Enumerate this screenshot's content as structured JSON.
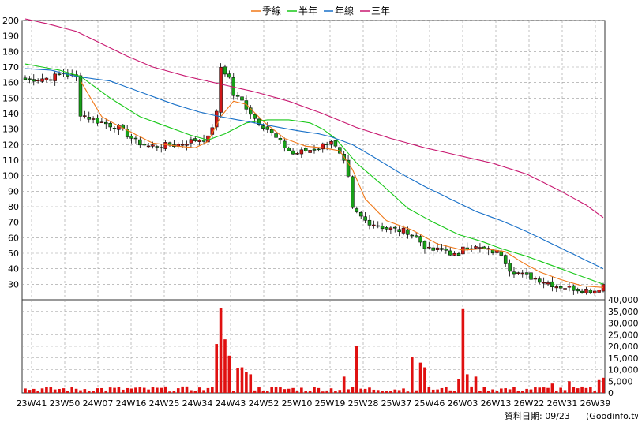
{
  "chart_data": {
    "type": "candlestick",
    "legend": [
      {
        "name": "季線",
        "color": "#f07818"
      },
      {
        "name": "半年",
        "color": "#18c818"
      },
      {
        "name": "年線",
        "color": "#1870c8"
      },
      {
        "name": "三年",
        "color": "#c81870"
      }
    ],
    "legend_position": "top-center",
    "colors": {
      "up": "#d01818",
      "down": "#18a018",
      "grid": "#999999",
      "volume": "#e01010"
    },
    "grid": true,
    "price_axis": {
      "min": 20,
      "max": 200,
      "ticks": [
        30,
        40,
        50,
        60,
        70,
        80,
        90,
        100,
        110,
        120,
        130,
        140,
        150,
        160,
        170,
        180,
        190,
        200
      ]
    },
    "volume_axis": {
      "min": 0,
      "max": 40000,
      "ticks": [
        "0",
        "5,000",
        "10,000",
        "15,000",
        "20,000",
        "25,000",
        "30,000",
        "35,000",
        "40,000"
      ]
    },
    "x_ticks": [
      "23W41",
      "23W50",
      "24W07",
      "24W16",
      "24W25",
      "24W34",
      "24W43",
      "24W52",
      "25W10",
      "25W19",
      "25W28",
      "25W37",
      "25W46",
      "26W03",
      "26W13",
      "26W22",
      "26W31",
      "26W39"
    ],
    "price_keypoints": [
      [
        0,
        162
      ],
      [
        6,
        163
      ],
      [
        9,
        166
      ],
      [
        12,
        163
      ],
      [
        13,
        140
      ],
      [
        16,
        136
      ],
      [
        22,
        131
      ],
      [
        26,
        122
      ],
      [
        29,
        119
      ],
      [
        36,
        120
      ],
      [
        40,
        123
      ],
      [
        43,
        124
      ],
      [
        45,
        140
      ],
      [
        46,
        170
      ],
      [
        48,
        163
      ],
      [
        49,
        152
      ],
      [
        51,
        148
      ],
      [
        54,
        137
      ],
      [
        57,
        130
      ],
      [
        60,
        121
      ],
      [
        63,
        114
      ],
      [
        66,
        116
      ],
      [
        69,
        118
      ],
      [
        72,
        123
      ],
      [
        75,
        108
      ],
      [
        76,
        98
      ],
      [
        77,
        78
      ],
      [
        80,
        71
      ],
      [
        85,
        66
      ],
      [
        90,
        64
      ],
      [
        92,
        60
      ],
      [
        95,
        52
      ],
      [
        99,
        52
      ],
      [
        102,
        47
      ],
      [
        103,
        55
      ],
      [
        107,
        53
      ],
      [
        112,
        50
      ],
      [
        114,
        40
      ],
      [
        117,
        36
      ],
      [
        121,
        33
      ],
      [
        125,
        29
      ],
      [
        130,
        27
      ],
      [
        134,
        26
      ],
      [
        136,
        30
      ]
    ],
    "ma_keypoints": {
      "季線": [
        [
          13,
          161
        ],
        [
          18,
          138
        ],
        [
          22,
          132
        ],
        [
          30,
          121
        ],
        [
          36,
          119
        ],
        [
          40,
          118
        ],
        [
          43,
          122
        ],
        [
          46,
          138
        ],
        [
          49,
          148
        ],
        [
          52,
          146
        ],
        [
          56,
          135
        ],
        [
          61,
          124
        ],
        [
          66,
          119
        ],
        [
          70,
          118
        ],
        [
          74,
          116
        ],
        [
          77,
          104
        ],
        [
          80,
          85
        ],
        [
          85,
          71
        ],
        [
          91,
          65
        ],
        [
          97,
          56
        ],
        [
          103,
          52
        ],
        [
          108,
          53
        ],
        [
          113,
          51
        ],
        [
          117,
          44
        ],
        [
          121,
          38
        ],
        [
          126,
          33
        ],
        [
          131,
          29
        ],
        [
          136,
          28
        ]
      ],
      "半年": [
        [
          0,
          172
        ],
        [
          8,
          168
        ],
        [
          13,
          164
        ],
        [
          20,
          150
        ],
        [
          27,
          138
        ],
        [
          33,
          132
        ],
        [
          39,
          126
        ],
        [
          43,
          123
        ],
        [
          47,
          127
        ],
        [
          52,
          134
        ],
        [
          57,
          136
        ],
        [
          62,
          136
        ],
        [
          67,
          134
        ],
        [
          70,
          130
        ],
        [
          73,
          124
        ],
        [
          78,
          108
        ],
        [
          84,
          94
        ],
        [
          90,
          79
        ],
        [
          96,
          70
        ],
        [
          102,
          62
        ],
        [
          107,
          58
        ],
        [
          112,
          53
        ],
        [
          118,
          48
        ],
        [
          125,
          41
        ],
        [
          132,
          34
        ],
        [
          136,
          30
        ]
      ],
      "年線": [
        [
          0,
          169
        ],
        [
          6,
          168
        ],
        [
          12,
          164
        ],
        [
          20,
          161
        ],
        [
          28,
          153
        ],
        [
          35,
          146
        ],
        [
          41,
          141
        ],
        [
          46,
          138
        ],
        [
          52,
          135
        ],
        [
          58,
          132
        ],
        [
          64,
          129
        ],
        [
          69,
          127
        ],
        [
          72,
          125
        ],
        [
          77,
          120
        ],
        [
          82,
          112
        ],
        [
          88,
          102
        ],
        [
          94,
          93
        ],
        [
          100,
          85
        ],
        [
          106,
          77
        ],
        [
          112,
          71
        ],
        [
          118,
          64
        ],
        [
          124,
          56
        ],
        [
          130,
          48
        ],
        [
          136,
          40
        ]
      ],
      "三年": [
        [
          0,
          201
        ],
        [
          5,
          198
        ],
        [
          12,
          193
        ],
        [
          18,
          185
        ],
        [
          24,
          177
        ],
        [
          30,
          170
        ],
        [
          38,
          164
        ],
        [
          46,
          159
        ],
        [
          54,
          154
        ],
        [
          62,
          148
        ],
        [
          70,
          140
        ],
        [
          78,
          131
        ],
        [
          86,
          124
        ],
        [
          94,
          118
        ],
        [
          102,
          113
        ],
        [
          110,
          108
        ],
        [
          118,
          101
        ],
        [
          126,
          90
        ],
        [
          132,
          81
        ],
        [
          136,
          73
        ]
      ]
    },
    "volume_spikes": [
      [
        45,
        21000
      ],
      [
        46,
        36500
      ],
      [
        47,
        23000
      ],
      [
        48,
        16000
      ],
      [
        50,
        10500
      ],
      [
        51,
        11000
      ],
      [
        52,
        9000
      ],
      [
        53,
        8000
      ],
      [
        75,
        7000
      ],
      [
        78,
        20000
      ],
      [
        91,
        15500
      ],
      [
        93,
        13000
      ],
      [
        94,
        11000
      ],
      [
        102,
        6000
      ],
      [
        103,
        36000
      ],
      [
        104,
        8000
      ],
      [
        106,
        7000
      ],
      [
        124,
        4000
      ],
      [
        128,
        5000
      ],
      [
        135,
        5500
      ],
      [
        136,
        6500
      ]
    ],
    "source_label": "資料日期: 09/23",
    "attribution": "(Goodinfo.tw)"
  }
}
